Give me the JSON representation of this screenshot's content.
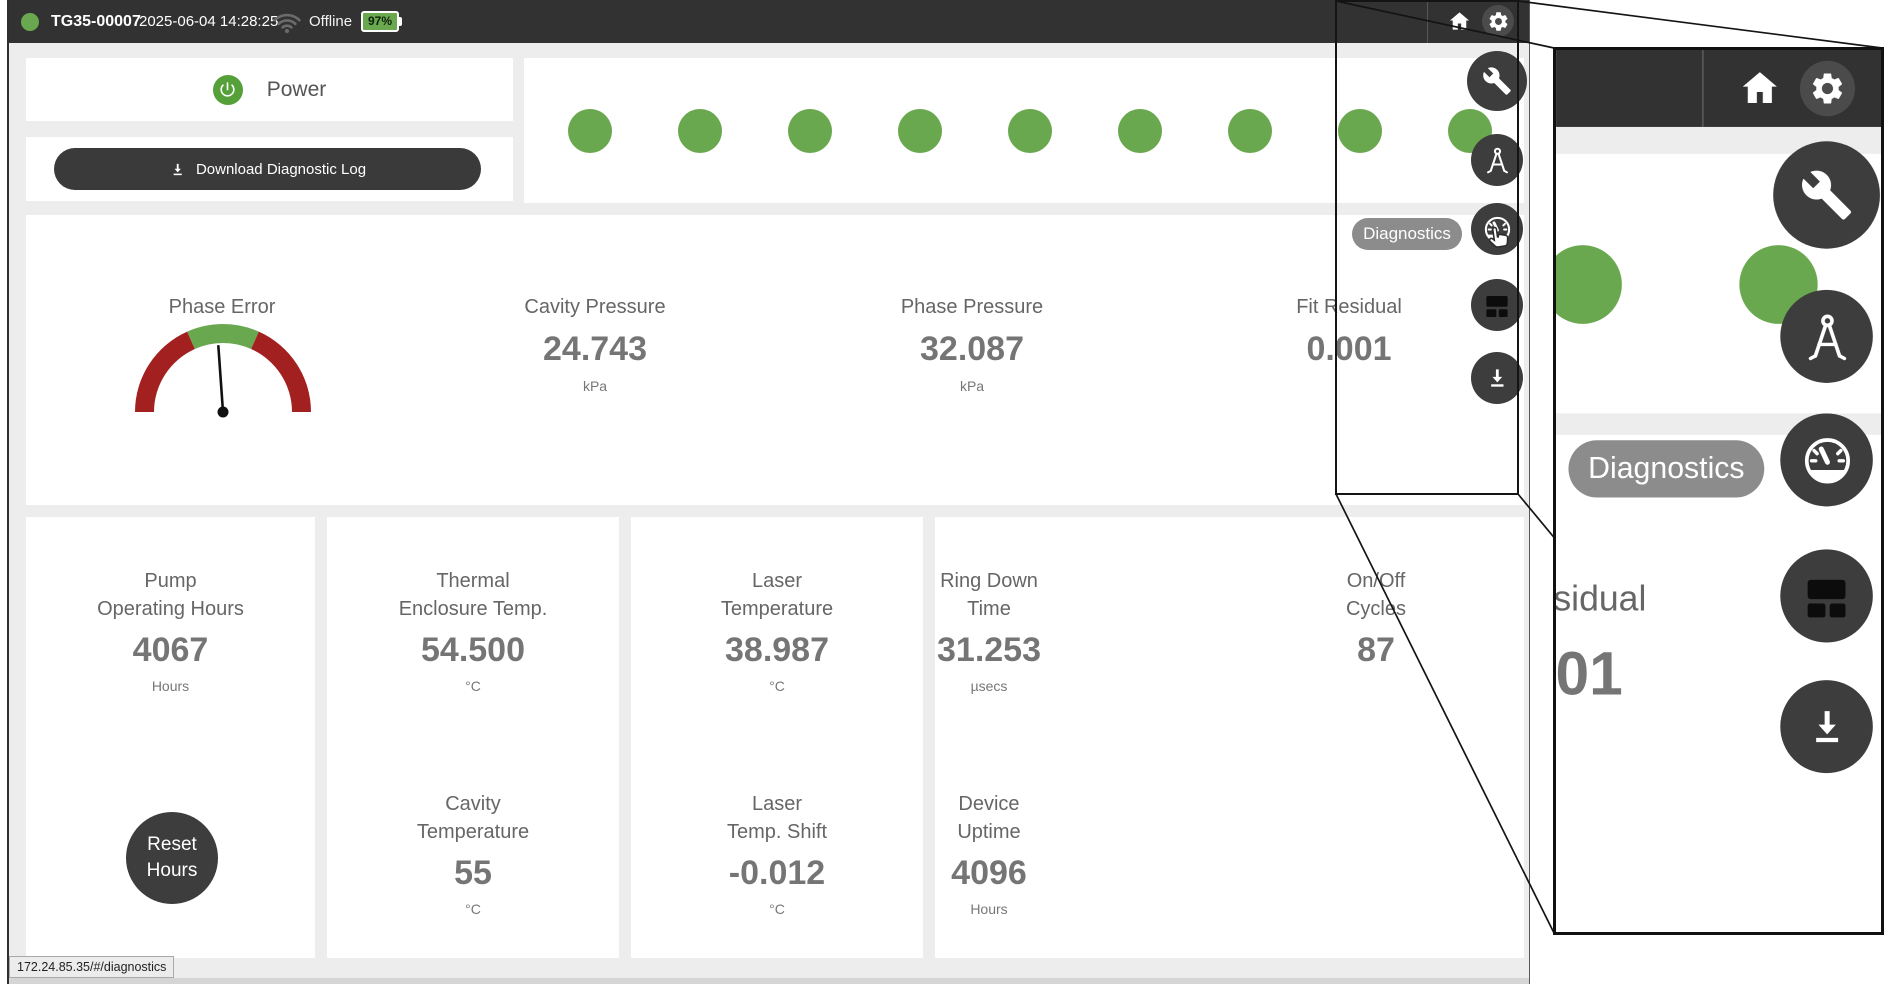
{
  "topbar": {
    "device_id": "TG35-00007",
    "datetime": "2025-06-04 14:28:25",
    "connection": "Offline",
    "battery": "97%"
  },
  "power": {
    "label": "Power"
  },
  "diagnostic_log": {
    "label": "Download Diagnostic Log"
  },
  "status_dots": {
    "count": 9
  },
  "sidebar": {
    "tooltip": "Diagnostics",
    "icons": [
      "wrench-icon",
      "compass-icon",
      "gauge-icon",
      "layout-icon",
      "download-icon"
    ]
  },
  "gauge_panel": {
    "phase_error_label": "Phase Error",
    "metrics": [
      {
        "label": "Cavity Pressure",
        "value": "24.743",
        "unit": "kPa"
      },
      {
        "label": "Phase Pressure",
        "value": "32.087",
        "unit": "kPa"
      },
      {
        "label": "Fit Residual",
        "value": "0.001",
        "unit": ""
      }
    ]
  },
  "cards": {
    "pump": {
      "label1": "Pump",
      "label2": "Operating Hours",
      "value": "4067",
      "unit": "Hours"
    },
    "thermal": {
      "label1": "Thermal",
      "label2": "Enclosure Temp.",
      "value": "54.500",
      "unit": "°C"
    },
    "cavity": {
      "label1": "Cavity",
      "label2": "Temperature",
      "value": "55",
      "unit": "°C"
    },
    "laser": {
      "label1": "Laser",
      "label2": "Temperature",
      "value": "38.987",
      "unit": "°C"
    },
    "laser_shift": {
      "label1": "Laser",
      "label2": "Temp. Shift",
      "value": "-0.012",
      "unit": "°C"
    },
    "ringdown": {
      "label1": "Ring Down",
      "label2": "Time",
      "value": "31.253",
      "unit": "µsecs"
    },
    "uptime": {
      "label1": "Device",
      "label2": "Uptime",
      "value": "4096",
      "unit": "Hours"
    },
    "cycles": {
      "label1": "On/Off",
      "label2": "Cycles",
      "value": "87",
      "unit": ""
    }
  },
  "reset_button": {
    "line1": "Reset",
    "line2": "Hours"
  },
  "statusbar": {
    "url": "172.24.85.35/#/diagnostics"
  },
  "colors": {
    "accent_green": "#6aa84f",
    "power_green": "#55a038",
    "topbar_bg": "#323232",
    "fab_bg": "#3d3d3d",
    "gauge_red": "#a32020",
    "tooltip_bg": "#8c8c8c"
  }
}
